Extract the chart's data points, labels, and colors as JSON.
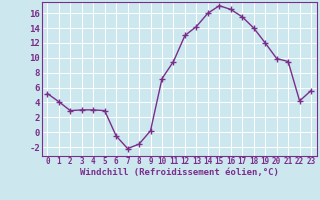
{
  "x": [
    0,
    1,
    2,
    3,
    4,
    5,
    6,
    7,
    8,
    9,
    10,
    11,
    12,
    13,
    14,
    15,
    16,
    17,
    18,
    19,
    20,
    21,
    22,
    23
  ],
  "y": [
    5.2,
    4.1,
    2.9,
    3.0,
    3.0,
    2.9,
    -0.5,
    -2.2,
    -1.6,
    0.2,
    7.2,
    9.5,
    13.0,
    14.2,
    16.0,
    17.0,
    16.5,
    15.5,
    14.0,
    12.0,
    9.9,
    9.5,
    4.2,
    5.6
  ],
  "line_color": "#7b2d8b",
  "marker": "+",
  "markersize": 5,
  "linewidth": 1.0,
  "xlabel": "Windchill (Refroidissement éolien,°C)",
  "ylabel_ticks": [
    "-2",
    "0",
    "2",
    "4",
    "6",
    "8",
    "10",
    "12",
    "14",
    "16"
  ],
  "yticks": [
    -2,
    0,
    2,
    4,
    6,
    8,
    10,
    12,
    14,
    16
  ],
  "ylim": [
    -3.2,
    17.5
  ],
  "xlim": [
    -0.5,
    23.5
  ],
  "xticks": [
    0,
    1,
    2,
    3,
    4,
    5,
    6,
    7,
    8,
    9,
    10,
    11,
    12,
    13,
    14,
    15,
    16,
    17,
    18,
    19,
    20,
    21,
    22,
    23
  ],
  "bg_color": "#cce8ee",
  "grid_color": "#b0d8e0",
  "tick_color": "#7b2d8b",
  "label_color": "#7b2d8b",
  "xlabel_fontsize": 6.5,
  "ytick_fontsize": 6.5,
  "xtick_fontsize": 5.5
}
